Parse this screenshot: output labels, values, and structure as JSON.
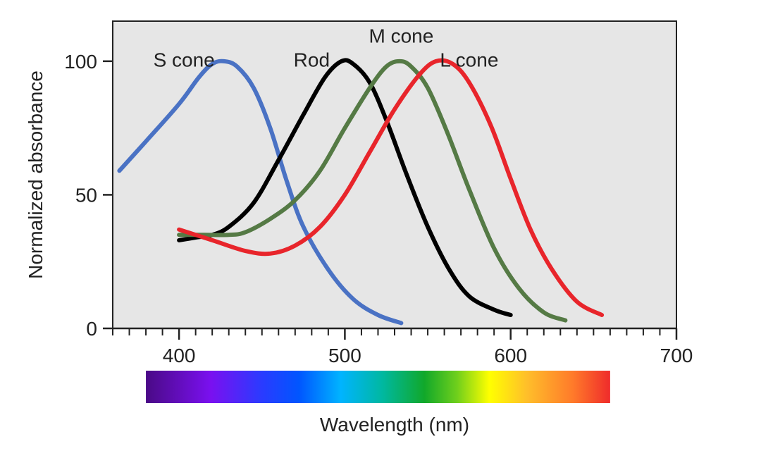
{
  "chart_data": {
    "type": "line",
    "title": "",
    "xlabel": "Wavelength (nm)",
    "ylabel": "Normalized absorbance",
    "xlim": [
      360,
      700
    ],
    "ylim": [
      0,
      115
    ],
    "x_ticks": [
      {
        "value": 400,
        "label": "400"
      },
      {
        "value": 500,
        "label": "500"
      },
      {
        "value": 600,
        "label": "600"
      },
      {
        "value": 700,
        "label": "700"
      }
    ],
    "x_minor_step": 10,
    "y_ticks": [
      {
        "value": 0,
        "label": "0"
      },
      {
        "value": 50,
        "label": "50"
      },
      {
        "value": 100,
        "label": "100"
      }
    ],
    "grid": false,
    "plot_background": "#e6e6e6",
    "series": [
      {
        "name": "S cone",
        "color": "#4a72c4",
        "label_anchor": [
          403,
          98
        ],
        "points": [
          [
            364,
            59
          ],
          [
            380,
            70
          ],
          [
            400,
            84
          ],
          [
            412,
            94
          ],
          [
            420,
            99
          ],
          [
            427,
            100
          ],
          [
            435,
            98
          ],
          [
            445,
            90
          ],
          [
            455,
            75
          ],
          [
            465,
            55
          ],
          [
            475,
            38
          ],
          [
            490,
            22
          ],
          [
            505,
            11
          ],
          [
            520,
            5
          ],
          [
            534,
            2
          ]
        ]
      },
      {
        "name": "Rod",
        "color": "#000000",
        "label_anchor": [
          480,
          98
        ],
        "points": [
          [
            400,
            33
          ],
          [
            410,
            34
          ],
          [
            420,
            35
          ],
          [
            430,
            38
          ],
          [
            445,
            47
          ],
          [
            460,
            63
          ],
          [
            475,
            80
          ],
          [
            488,
            94
          ],
          [
            498,
            100
          ],
          [
            505,
            99
          ],
          [
            515,
            92
          ],
          [
            525,
            78
          ],
          [
            537,
            58
          ],
          [
            550,
            38
          ],
          [
            563,
            22
          ],
          [
            575,
            12
          ],
          [
            590,
            7
          ],
          [
            600,
            5
          ]
        ]
      },
      {
        "name": "M cone",
        "color": "#557a45",
        "label_anchor": [
          534,
          107
        ],
        "points": [
          [
            400,
            35
          ],
          [
            415,
            35
          ],
          [
            430,
            35
          ],
          [
            440,
            36
          ],
          [
            455,
            41
          ],
          [
            470,
            48
          ],
          [
            485,
            59
          ],
          [
            500,
            75
          ],
          [
            515,
            90
          ],
          [
            525,
            98
          ],
          [
            533,
            100
          ],
          [
            540,
            98
          ],
          [
            550,
            90
          ],
          [
            562,
            73
          ],
          [
            575,
            52
          ],
          [
            590,
            30
          ],
          [
            605,
            15
          ],
          [
            620,
            6
          ],
          [
            633,
            3
          ]
        ]
      },
      {
        "name": "L cone",
        "color": "#e8252b",
        "label_anchor": [
          575,
          98
        ],
        "points": [
          [
            400,
            37
          ],
          [
            420,
            33
          ],
          [
            440,
            29
          ],
          [
            455,
            28
          ],
          [
            470,
            31
          ],
          [
            485,
            38
          ],
          [
            500,
            50
          ],
          [
            515,
            66
          ],
          [
            530,
            82
          ],
          [
            545,
            95
          ],
          [
            555,
            100
          ],
          [
            565,
            99
          ],
          [
            575,
            92
          ],
          [
            588,
            76
          ],
          [
            600,
            56
          ],
          [
            612,
            37
          ],
          [
            625,
            22
          ],
          [
            640,
            10
          ],
          [
            655,
            5
          ]
        ]
      }
    ],
    "spectrum_bar": {
      "range": [
        380,
        660
      ],
      "stops": [
        {
          "offset": 0.0,
          "color": "#4a0a86"
        },
        {
          "offset": 0.14,
          "color": "#7a10f0"
        },
        {
          "offset": 0.25,
          "color": "#2a3bff"
        },
        {
          "offset": 0.33,
          "color": "#0056ff"
        },
        {
          "offset": 0.42,
          "color": "#00b4ff"
        },
        {
          "offset": 0.51,
          "color": "#00b8a0"
        },
        {
          "offset": 0.6,
          "color": "#11a82a"
        },
        {
          "offset": 0.67,
          "color": "#6fcf1c"
        },
        {
          "offset": 0.74,
          "color": "#ffff00"
        },
        {
          "offset": 0.82,
          "color": "#ffbf2a"
        },
        {
          "offset": 0.92,
          "color": "#ff7a2a"
        },
        {
          "offset": 1.0,
          "color": "#ef2b2b"
        }
      ]
    }
  }
}
